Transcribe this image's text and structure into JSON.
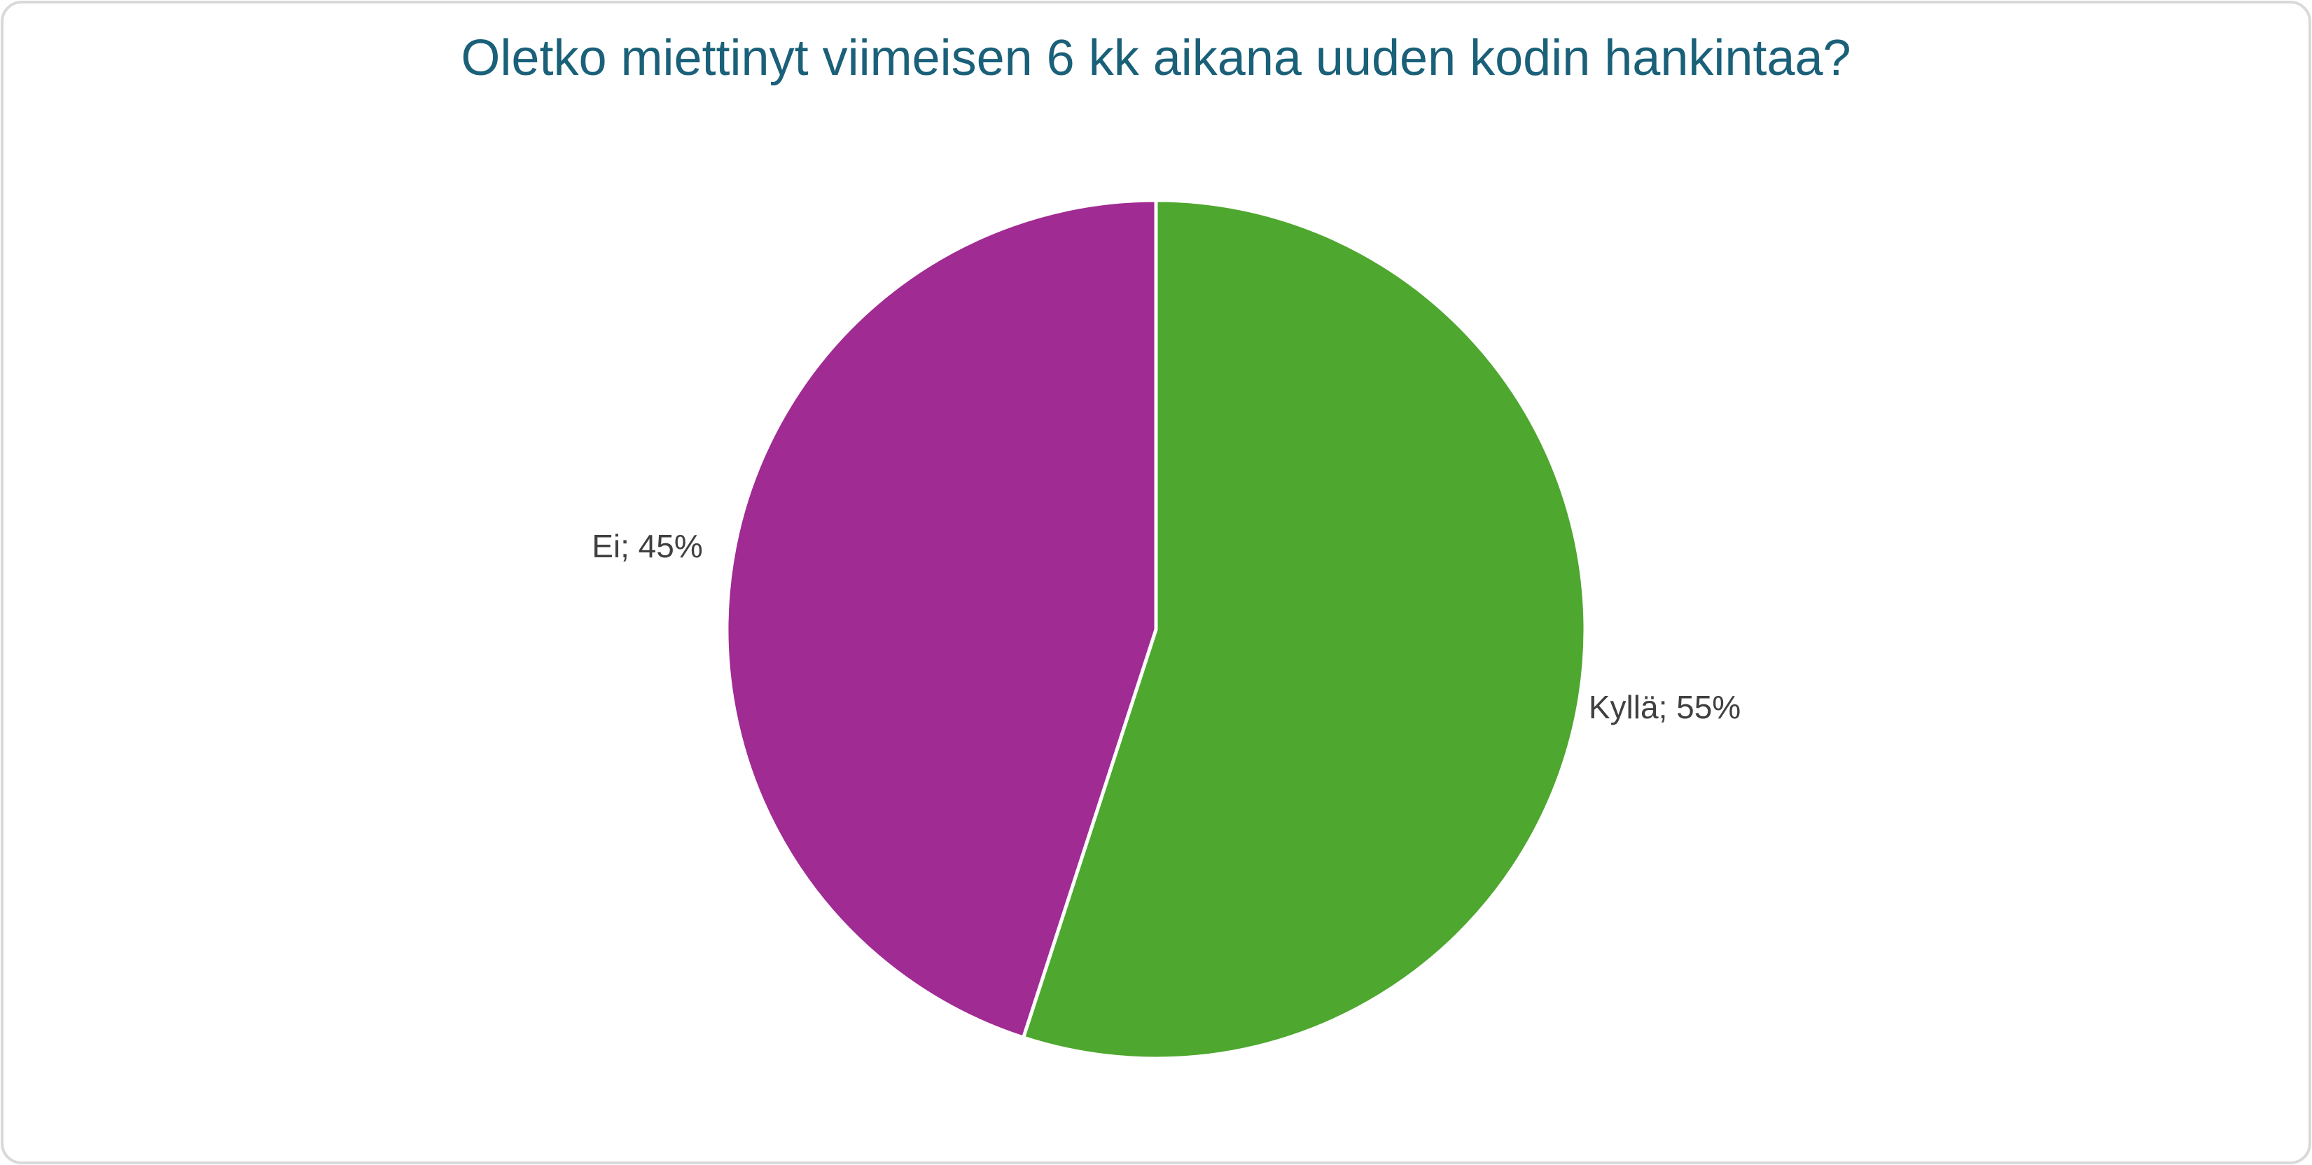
{
  "chart_data": {
    "type": "pie",
    "title": "Oletko miettinyt viimeisen 6 kk aikana uuden kodin hankintaa?",
    "values": [
      55,
      45
    ],
    "value_labels": [
      "Kyllä; 55%",
      "Ei; 45%"
    ],
    "colors": [
      "#4ea72e",
      "#a02b93"
    ]
  }
}
